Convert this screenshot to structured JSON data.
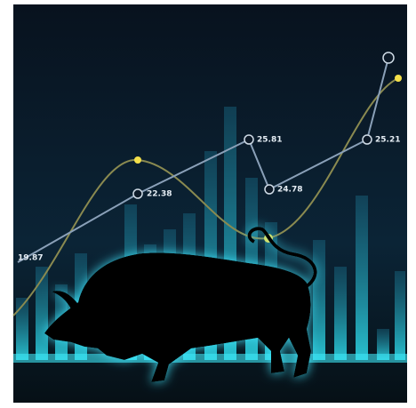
{
  "labels": [
    "19.87",
    "22.38",
    "25.81",
    "24.78",
    "25.21"
  ]
}
